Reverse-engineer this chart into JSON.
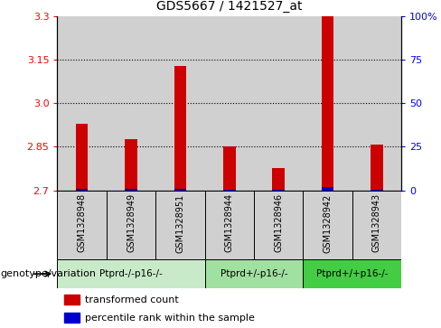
{
  "title": "GDS5667 / 1421527_at",
  "samples": [
    "GSM1328948",
    "GSM1328949",
    "GSM1328951",
    "GSM1328944",
    "GSM1328946",
    "GSM1328942",
    "GSM1328943"
  ],
  "red_values": [
    2.93,
    2.875,
    3.13,
    2.852,
    2.775,
    3.3,
    2.858
  ],
  "blue_values": [
    2.706,
    2.706,
    2.704,
    2.703,
    2.703,
    2.712,
    2.703
  ],
  "ymin": 2.7,
  "ymax": 3.3,
  "yticks_left": [
    2.7,
    2.85,
    3.0,
    3.15,
    3.3
  ],
  "yticks_right": [
    0,
    25,
    50,
    75,
    100
  ],
  "dotted_lines": [
    2.85,
    3.0,
    3.15
  ],
  "groups": [
    {
      "label": "Ptprd-/-p16-/-",
      "indices": [
        0,
        1,
        2
      ],
      "color": "#c8eac8"
    },
    {
      "label": "Ptprd+/-p16-/-",
      "indices": [
        3,
        4
      ],
      "color": "#a0e0a0"
    },
    {
      "label": "Ptprd+/+p16-/-",
      "indices": [
        5,
        6
      ],
      "color": "#44cc44"
    }
  ],
  "bar_width": 0.25,
  "red_color": "#cc0000",
  "blue_color": "#0000cc",
  "cell_bg_color": "#d0d0d0",
  "legend_red": "transformed count",
  "legend_blue": "percentile rank within the sample",
  "genotype_label": "genotype/variation"
}
